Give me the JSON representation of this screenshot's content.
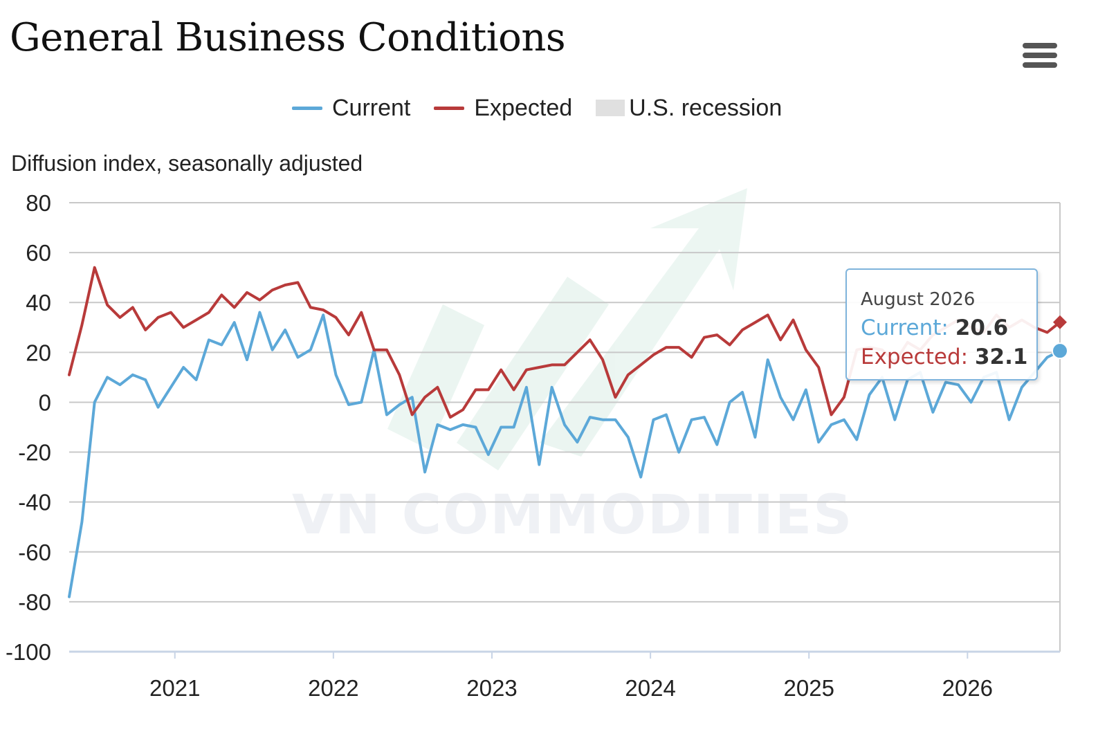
{
  "title": "General Business Conditions",
  "menu_icon": "hamburger-menu-icon",
  "legend": [
    {
      "label": "Current",
      "color": "#5ca8d8",
      "type": "line"
    },
    {
      "label": "Expected",
      "color": "#b83a3a",
      "type": "line"
    },
    {
      "label": "U.S. recession",
      "color": "#e0e0e0",
      "type": "box"
    }
  ],
  "watermark": "VN COMMODITIES",
  "tooltip": {
    "date": "August 2026",
    "current_label": "Current:",
    "current_value": "20.6",
    "expected_label": "Expected:",
    "expected_value": "32.1"
  },
  "chart_data": {
    "type": "line",
    "title": "General Business Conditions",
    "ylabel": "Diffusion index, seasonally adjusted",
    "ylim": [
      -100,
      80
    ],
    "yticks": [
      80,
      60,
      40,
      20,
      0,
      -20,
      -40,
      -60,
      -80,
      -100
    ],
    "xlabels": [
      "2021",
      "2022",
      "2023",
      "2024",
      "2025",
      "2026"
    ],
    "xrange": [
      "2020-05",
      "2026-08"
    ],
    "grid": true,
    "legend_position": "top-center",
    "series": [
      {
        "name": "Current",
        "color": "#5ca8d8",
        "values": [
          -78,
          -48,
          0,
          10,
          7,
          11,
          9,
          -2,
          6,
          14,
          9,
          25,
          23,
          32,
          17,
          36,
          21,
          29,
          18,
          21,
          35,
          11,
          -1,
          0,
          21,
          -5,
          -1,
          2,
          -28,
          -9,
          -11,
          -9,
          -10,
          -21,
          -10,
          -10,
          6,
          -25,
          6,
          -9,
          -16,
          -6,
          -7,
          -7,
          -14,
          -30,
          -7,
          -5,
          -20,
          -7,
          -6,
          -17,
          0,
          4,
          -14,
          17,
          2,
          -7,
          5,
          -16,
          -9,
          -7,
          -15,
          3,
          10,
          -7,
          9,
          12,
          -4,
          8,
          7,
          0,
          10,
          12,
          -7,
          6,
          12,
          18,
          20.6
        ],
        "last_point": {
          "x": "2026-08",
          "y": 20.6
        }
      },
      {
        "name": "Expected",
        "color": "#b83a3a",
        "values": [
          11,
          31,
          54,
          39,
          34,
          38,
          29,
          34,
          36,
          30,
          33,
          36,
          43,
          38,
          44,
          41,
          45,
          47,
          48,
          38,
          37,
          34,
          27,
          36,
          21,
          21,
          11,
          -5,
          2,
          6,
          -6,
          -3,
          5,
          5,
          13,
          5,
          13,
          14,
          15,
          15,
          20,
          25,
          17,
          2,
          11,
          15,
          19,
          22,
          22,
          18,
          26,
          27,
          23,
          29,
          32,
          35,
          25,
          33,
          21,
          14,
          -5,
          2,
          21,
          22,
          21,
          16,
          24,
          21,
          27,
          30,
          33,
          30,
          28,
          35,
          30,
          33,
          30,
          28,
          32.1
        ],
        "last_point": {
          "x": "2026-08",
          "y": 32.1
        }
      }
    ]
  }
}
